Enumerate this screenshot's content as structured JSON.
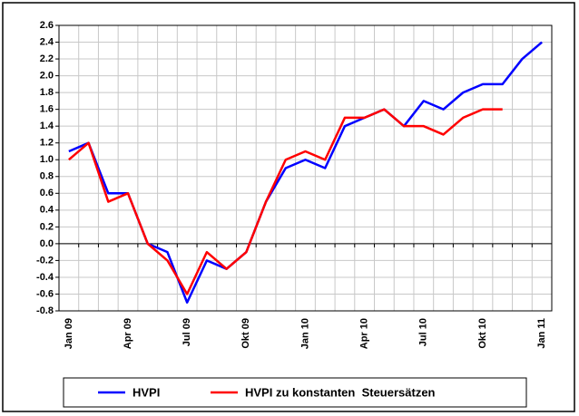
{
  "chart_data": {
    "type": "line",
    "categories": [
      "Jan 09",
      null,
      null,
      "Apr 09",
      null,
      null,
      "Jul 09",
      null,
      null,
      "Okt 09",
      null,
      null,
      "Jan 10",
      null,
      null,
      "Apr 10",
      null,
      null,
      "Jul 10",
      null,
      null,
      "Okt 10",
      null,
      null,
      "Jan 11"
    ],
    "series": [
      {
        "name": "HVPI",
        "color": "#0000ff",
        "values": [
          1.1,
          1.2,
          0.6,
          0.6,
          0.0,
          -0.1,
          -0.7,
          -0.2,
          -0.3,
          -0.1,
          0.5,
          0.9,
          1.0,
          0.9,
          1.4,
          1.5,
          1.6,
          1.4,
          1.7,
          1.6,
          1.8,
          1.9,
          1.9,
          2.2,
          2.4
        ]
      },
      {
        "name": "HVPI zu konstanten  Steuersätzen",
        "color": "#ff0000",
        "values": [
          1.0,
          1.2,
          0.5,
          0.6,
          0.0,
          -0.2,
          -0.6,
          -0.1,
          -0.3,
          -0.1,
          0.5,
          1.0,
          1.1,
          1.0,
          1.5,
          1.5,
          1.6,
          1.4,
          1.4,
          1.3,
          1.5,
          1.6,
          1.6,
          null,
          null
        ]
      }
    ],
    "ylim": [
      -0.8,
      2.6
    ],
    "yticks": [
      -0.8,
      -0.6,
      -0.4,
      -0.2,
      {
        "value": 0,
        "label": "0.0"
      },
      0.2,
      0.4,
      0.6,
      0.8,
      {
        "value": 1,
        "label": "1.0"
      },
      1.2,
      1.4,
      1.6,
      1.8,
      {
        "value": 2,
        "label": "2.0"
      },
      2.2,
      2.4,
      2.6
    ],
    "grid": true,
    "legend": "bottom"
  }
}
